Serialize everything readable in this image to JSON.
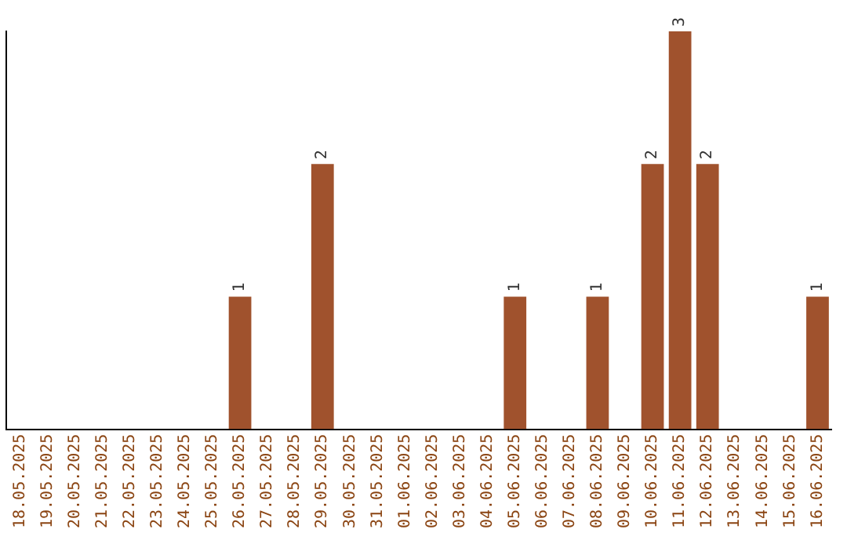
{
  "chart_data": {
    "type": "bar",
    "categories": [
      "18.05.2025",
      "19.05.2025",
      "20.05.2025",
      "21.05.2025",
      "22.05.2025",
      "23.05.2025",
      "24.05.2025",
      "25.05.2025",
      "26.05.2025",
      "27.05.2025",
      "28.05.2025",
      "29.05.2025",
      "30.05.2025",
      "31.05.2025",
      "01.06.2025",
      "02.06.2025",
      "03.06.2025",
      "04.06.2025",
      "05.06.2025",
      "06.06.2025",
      "07.06.2025",
      "08.06.2025",
      "09.06.2025",
      "10.06.2025",
      "11.06.2025",
      "12.06.2025",
      "13.06.2025",
      "14.06.2025",
      "15.06.2025",
      "16.06.2025"
    ],
    "values": [
      0,
      0,
      0,
      0,
      0,
      0,
      0,
      0,
      1,
      0,
      0,
      2,
      0,
      0,
      0,
      0,
      0,
      0,
      1,
      0,
      0,
      1,
      0,
      2,
      3,
      2,
      0,
      0,
      0,
      1
    ],
    "value_labels": [
      null,
      null,
      null,
      null,
      null,
      null,
      null,
      null,
      "1",
      null,
      null,
      "2",
      null,
      null,
      null,
      null,
      null,
      null,
      "1",
      null,
      null,
      "1",
      null,
      "2",
      "3",
      "2",
      null,
      null,
      null,
      "1"
    ],
    "color": "#a0522d",
    "grid": false,
    "tick_labels": "x"
  }
}
